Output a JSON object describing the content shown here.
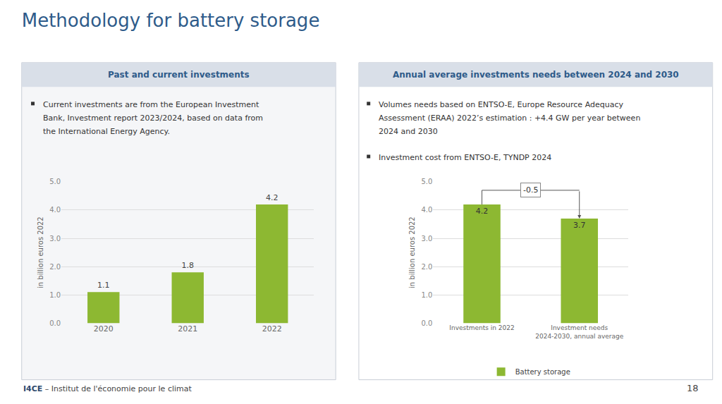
{
  "title": "Methodology for battery storage",
  "annotations": [
    "I4CE",
    "– Institut de l'économie pour le climat",
    "18"
  ],
  "chart_data": [
    {
      "type": "bar",
      "title": "Past and current investments",
      "subtitle": [
        [
          "Current investments are from the European Investment",
          "Bank, Investment report 2023/2024, based on data from",
          "the International Energy Agency."
        ]
      ],
      "categories": [
        "2020",
        "2021",
        "2022"
      ],
      "values": [
        1.1,
        1.8,
        4.2
      ],
      "color": "#8db832",
      "ylabel": "in billion euros 2022",
      "ylim": [
        0,
        5.0
      ],
      "yticks": [
        {
          "value": 0,
          "label": "0.0"
        },
        {
          "value": 1,
          "label": "1.0"
        },
        {
          "value": 2,
          "label": "2.0"
        },
        {
          "value": 3,
          "label": "3.0"
        },
        {
          "value": 4,
          "label": "4.0"
        },
        {
          "value": 5,
          "label": "5.0"
        }
      ],
      "grid": true,
      "data_labels": true
    },
    {
      "type": "bar",
      "title": "Annual average investments needs between 2024 and 2030",
      "subtitle": [
        [
          "Volumes needs based on ENTSO-E, Europe Resource Adequacy",
          "Assessment (ERAA) 2022’s estimation : +4.4 GW per year between",
          "2024 and 2030"
        ],
        [
          "Investment cost from ENTSO-E, TYNDP 2024"
        ]
      ],
      "categories": [
        "Investments in 2022",
        "Investment needs 2024-2030, annual average"
      ],
      "series": [
        {
          "name": "Battery storage",
          "color": "#8db832",
          "values": [
            4.2,
            3.7
          ]
        }
      ],
      "ylabel": "in billion euros 2022",
      "ylim": [
        0,
        5.0
      ],
      "yticks": [
        {
          "value": 0,
          "label": "0.0"
        },
        {
          "value": 1,
          "label": "1.0"
        },
        {
          "value": 2,
          "label": "2.0"
        },
        {
          "value": 3,
          "label": "3.0"
        },
        {
          "value": 4,
          "label": "4.0"
        },
        {
          "value": 5,
          "label": "5.0"
        }
      ],
      "grid": true,
      "data_labels": true,
      "legend": "bottom",
      "annotations": [
        "-0.5"
      ]
    }
  ]
}
